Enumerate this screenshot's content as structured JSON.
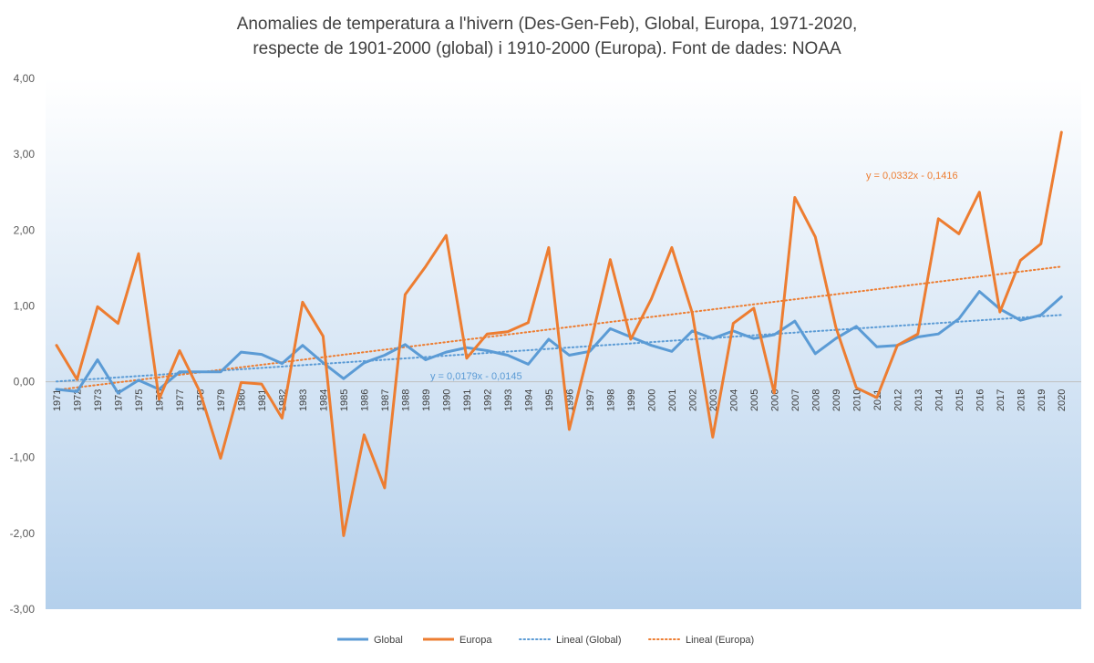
{
  "chart_data": {
    "type": "line",
    "title_line1": "Anomalies de temperatura a l'hivern (Des-Gen-Feb), Global, Europa, 1971-2020,",
    "title_line2": "respecte de 1901-2000 (global) i 1910-2000 (Europa). Font de dades: NOAA",
    "xlabel": "",
    "ylabel": "",
    "ylim": [
      -3,
      4
    ],
    "yticks": [
      "-3,00",
      "-2,00",
      "-1,00",
      "0,00",
      "1,00",
      "2,00",
      "3,00",
      "4,00"
    ],
    "grid": false,
    "legend_position": "bottom",
    "x": [
      1971,
      1972,
      1973,
      1974,
      1975,
      1976,
      1977,
      1978,
      1979,
      1980,
      1981,
      1982,
      1983,
      1984,
      1985,
      1986,
      1987,
      1988,
      1989,
      1990,
      1991,
      1992,
      1993,
      1994,
      1995,
      1996,
      1997,
      1998,
      1999,
      2000,
      2001,
      2002,
      2003,
      2004,
      2005,
      2006,
      2007,
      2008,
      2009,
      2010,
      2011,
      2012,
      2013,
      2014,
      2015,
      2016,
      2017,
      2018,
      2019,
      2020
    ],
    "series": [
      {
        "name": "Global",
        "color": "#5b9bd5",
        "style": "solid",
        "values": [
          -0.1,
          -0.13,
          0.29,
          -0.15,
          0.02,
          -0.1,
          0.13,
          0.13,
          0.13,
          0.39,
          0.36,
          0.24,
          0.48,
          0.25,
          0.04,
          0.25,
          0.35,
          0.49,
          0.29,
          0.39,
          0.45,
          0.41,
          0.35,
          0.23,
          0.56,
          0.35,
          0.4,
          0.7,
          0.59,
          0.48,
          0.4,
          0.67,
          0.57,
          0.67,
          0.57,
          0.62,
          0.8,
          0.37,
          0.57,
          0.73,
          0.46,
          0.48,
          0.59,
          0.63,
          0.83,
          1.19,
          0.96,
          0.81,
          0.88,
          1.12
        ]
      },
      {
        "name": "Europa",
        "color": "#ed7d31",
        "style": "solid",
        "values": [
          0.48,
          0.03,
          0.99,
          0.77,
          1.69,
          -0.23,
          0.41,
          -0.14,
          -1.01,
          -0.01,
          -0.03,
          -0.48,
          1.05,
          0.6,
          -2.03,
          -0.7,
          -1.4,
          1.15,
          1.52,
          1.93,
          0.31,
          0.63,
          0.66,
          0.78,
          1.77,
          -0.63,
          0.46,
          1.61,
          0.56,
          1.09,
          1.77,
          0.91,
          -0.73,
          0.77,
          0.97,
          -0.15,
          2.43,
          1.91,
          0.72,
          -0.08,
          -0.21,
          0.48,
          0.63,
          2.15,
          1.95,
          2.5,
          0.92,
          1.6,
          1.82,
          3.29
        ]
      },
      {
        "name": "Lineal  (Global)",
        "color": "#5b9bd5",
        "style": "dotted",
        "trend": {
          "slope": 0.0179,
          "intercept": -0.0145
        },
        "equation": "y = 0,0179x - 0,0145"
      },
      {
        "name": "Lineal  (Europa)",
        "color": "#ed7d31",
        "style": "dotted",
        "trend": {
          "slope": 0.0332,
          "intercept": -0.1416
        },
        "equation": "y = 0,0332x - 0,1416"
      }
    ]
  }
}
